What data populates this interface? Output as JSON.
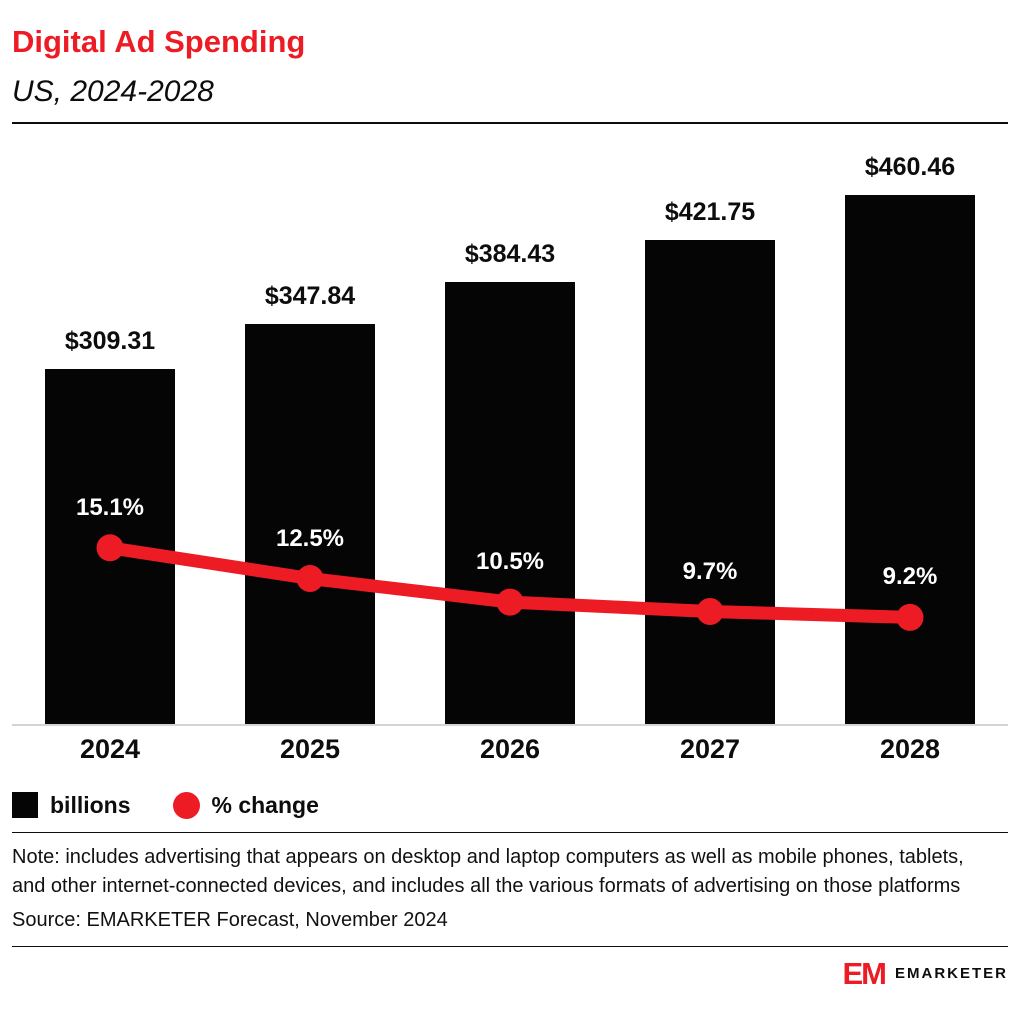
{
  "header": {
    "title": "Digital Ad Spending",
    "subtitle": "US, 2024-2028"
  },
  "chart_data": {
    "type": "bar",
    "title": "Digital Ad Spending",
    "subtitle": "US, 2024-2028",
    "categories": [
      "2024",
      "2025",
      "2026",
      "2027",
      "2028"
    ],
    "series": [
      {
        "name": "billions",
        "type": "bar",
        "unit": "US$ billions",
        "values": [
          309.31,
          347.84,
          384.43,
          421.75,
          460.46
        ],
        "labels": [
          "$309.31",
          "$347.84",
          "$384.43",
          "$421.75",
          "$460.46"
        ],
        "color": "#050505"
      },
      {
        "name": "% change",
        "type": "line",
        "unit": "%",
        "values": [
          15.1,
          12.5,
          10.5,
          9.7,
          9.2
        ],
        "labels": [
          "15.1%",
          "12.5%",
          "10.5%",
          "9.7%",
          "9.2%"
        ],
        "color": "#ed1c24"
      }
    ],
    "legend_position": "bottom-left",
    "grid": false,
    "data_labels": true
  },
  "legend": {
    "bars": "billions",
    "line": "% change"
  },
  "note": "Note: includes advertising that appears on desktop and laptop computers as well as mobile phones, tablets, and other internet-connected devices, and includes all the various formats of advertising on those platforms",
  "source": "Source: EMARKETER Forecast, November 2024",
  "footer": {
    "logo": "EM",
    "brand": "EMARKETER"
  },
  "colors": {
    "accent": "#ed1c24",
    "bar": "#050505",
    "baseline": "#d4d4d4"
  }
}
